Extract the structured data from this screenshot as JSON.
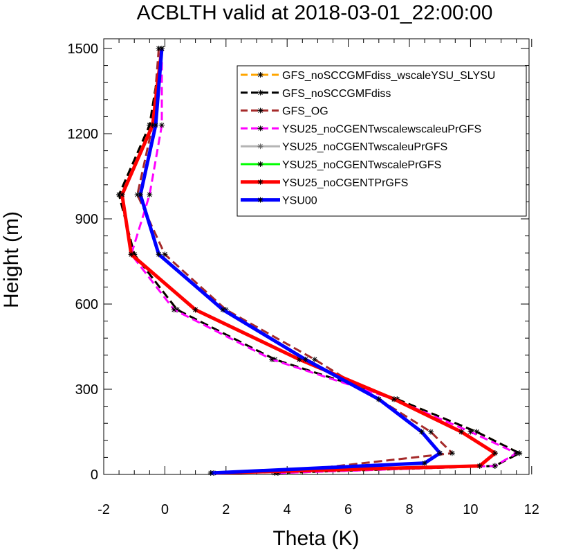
{
  "chart_data": {
    "type": "line",
    "title": "ACBLTH valid at 2018-03-01_22:00:00",
    "xlabel": "Theta (K)",
    "ylabel": "Height (m)",
    "xlim": [
      -2,
      12
    ],
    "ylim": [
      0,
      1500
    ],
    "xticks": [
      -2,
      0,
      2,
      4,
      6,
      8,
      10,
      12
    ],
    "yticks": [
      0,
      300,
      600,
      900,
      1200,
      1500
    ],
    "legend_position": "top-right",
    "grid": false,
    "series": [
      {
        "name": "GFS_noSCCGMFdiss_wscaleYSU_SLYSU",
        "color": "#ffa500",
        "dash": "12,6",
        "width": 3,
        "x": [
          3.6,
          10.8,
          11.6,
          10.2,
          7.6,
          3.6,
          0.4,
          -1.0,
          -1.5,
          -0.5,
          -0.1
        ],
        "y": [
          5,
          30,
          75,
          150,
          265,
          405,
          580,
          775,
          985,
          1230,
          1500
        ]
      },
      {
        "name": "GFS_noSCCGMFdiss",
        "color": "#000000",
        "dash": "12,6",
        "width": 3,
        "x": [
          3.6,
          10.8,
          11.6,
          10.2,
          7.6,
          3.6,
          0.4,
          -1.0,
          -1.5,
          -0.5,
          -0.1
        ],
        "y": [
          5,
          30,
          75,
          150,
          265,
          405,
          580,
          775,
          985,
          1230,
          1500
        ]
      },
      {
        "name": "GFS_OG",
        "color": "#a52a2a",
        "dash": "12,6",
        "width": 3,
        "x": [
          3.6,
          9.4,
          8.7,
          7.0,
          4.9,
          2.0,
          0.0,
          -0.9,
          -0.4,
          -0.2
        ],
        "y": [
          5,
          75,
          150,
          265,
          405,
          580,
          775,
          985,
          1230,
          1500
        ]
      },
      {
        "name": "YSU25_noCGENTwscalewscaleuPrGFS",
        "color": "#ff00ff",
        "dash": "12,6",
        "width": 3,
        "x": [
          3.7,
          10.8,
          11.5,
          10.0,
          7.5,
          3.5,
          0.3,
          -1.1,
          -0.5,
          -0.1,
          -0.1
        ],
        "y": [
          5,
          30,
          75,
          150,
          265,
          405,
          580,
          775,
          985,
          1230,
          1500
        ]
      },
      {
        "name": "YSU25_noCGENTwscaleuPrGFS",
        "color": "#b4b4b4",
        "dash": "",
        "width": 3,
        "x": [
          1.6,
          10.3,
          10.8,
          9.7,
          7.5,
          4.4,
          1.0,
          -1.1,
          -1.4,
          -0.4,
          -0.1
        ],
        "y": [
          5,
          30,
          75,
          150,
          265,
          405,
          580,
          775,
          985,
          1230,
          1500
        ]
      },
      {
        "name": "YSU25_noCGENTwscalePrGFS",
        "color": "#00ff00",
        "dash": "",
        "width": 3,
        "x": [
          1.6,
          10.3,
          10.8,
          9.7,
          7.5,
          4.4,
          1.0,
          -1.1,
          -1.4,
          -0.4,
          -0.1
        ],
        "y": [
          5,
          30,
          75,
          150,
          265,
          405,
          580,
          775,
          985,
          1230,
          1500
        ]
      },
      {
        "name": "YSU25_noCGENTPrGFS",
        "color": "#ff0000",
        "dash": "",
        "width": 5,
        "x": [
          1.6,
          10.3,
          10.8,
          9.7,
          7.5,
          4.4,
          1.0,
          -1.1,
          -1.4,
          -0.4,
          -0.1
        ],
        "y": [
          5,
          30,
          75,
          150,
          265,
          405,
          580,
          775,
          985,
          1230,
          1500
        ]
      },
      {
        "name": "YSU00",
        "color": "#0000ff",
        "dash": "",
        "width": 5,
        "x": [
          1.5,
          8.5,
          9.0,
          8.4,
          7.0,
          4.6,
          1.9,
          -0.2,
          -0.8,
          -0.3,
          -0.1
        ],
        "y": [
          5,
          40,
          75,
          150,
          265,
          405,
          580,
          775,
          985,
          1230,
          1500
        ]
      }
    ]
  }
}
